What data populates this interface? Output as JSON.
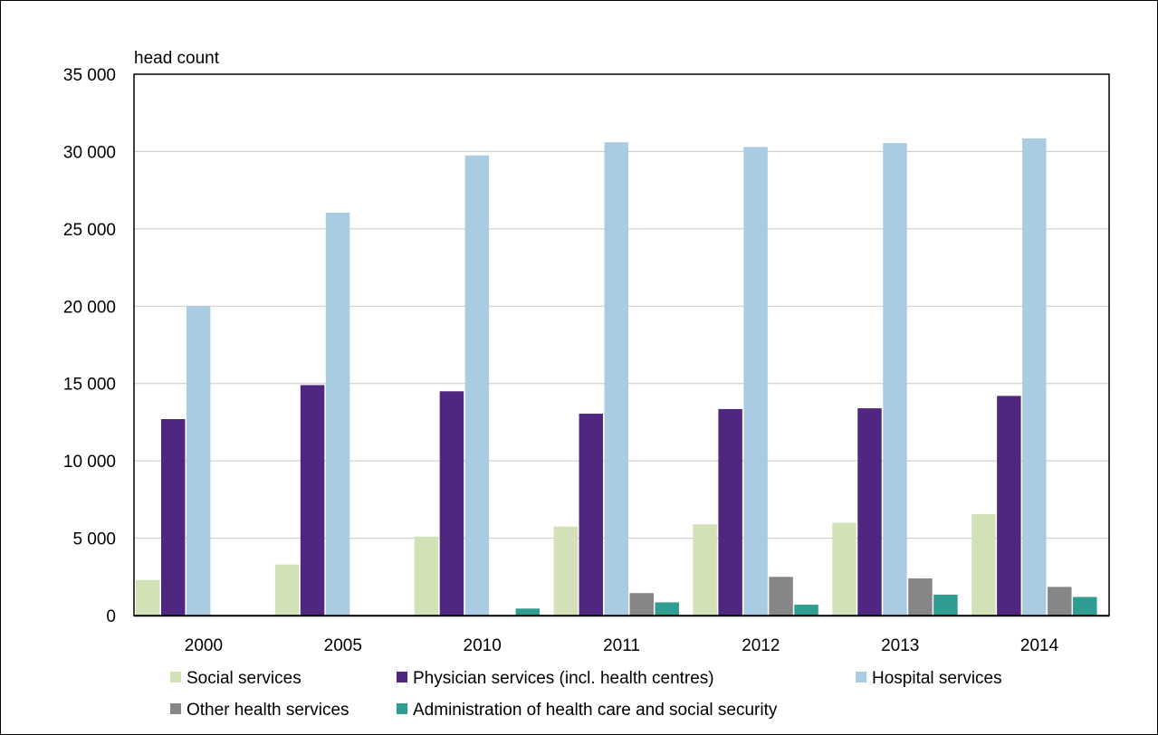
{
  "chart_data": {
    "type": "bar",
    "title": "",
    "ylabel": "head count",
    "xlabel": "",
    "categories": [
      "2000",
      "2005",
      "2010",
      "2011",
      "2012",
      "2013",
      "2014"
    ],
    "ylim": [
      0,
      35000
    ],
    "yticks": [
      0,
      5000,
      10000,
      15000,
      20000,
      25000,
      30000,
      35000
    ],
    "ytick_labels": [
      "0",
      "5 000",
      "10 000",
      "15 000",
      "20 000",
      "25 000",
      "30 000",
      "35 000"
    ],
    "grid": true,
    "legend_position": "bottom",
    "series": [
      {
        "name": "Social services",
        "color": "#d3e2b6",
        "values": [
          2300,
          3300,
          5100,
          5750,
          5900,
          6000,
          6550
        ]
      },
      {
        "name": "Physician services (incl. health centres)",
        "color": "#4f2780",
        "values": [
          12700,
          14900,
          14500,
          13050,
          13350,
          13400,
          14200
        ]
      },
      {
        "name": "Hospital services",
        "color": "#a9cce3",
        "values": [
          20000,
          26050,
          29750,
          30600,
          30300,
          30550,
          30850
        ]
      },
      {
        "name": "Other health services",
        "color": "#868688",
        "values": [
          0,
          0,
          0,
          1450,
          2500,
          2400,
          1850
        ]
      },
      {
        "name": "Administration of health care and social security",
        "color": "#2f9d91",
        "values": [
          0,
          0,
          450,
          850,
          700,
          1350,
          1200
        ]
      }
    ]
  }
}
